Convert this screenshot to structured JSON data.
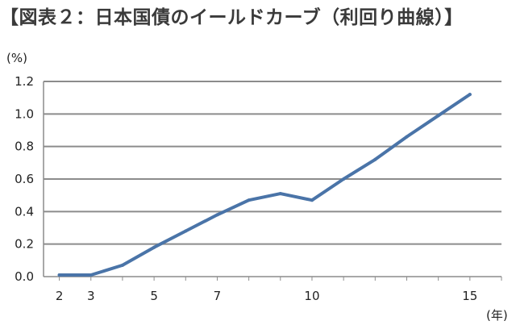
{
  "title": "【図表２：日本国債のイールドカーブ（利回り曲線）】",
  "colors": {
    "line": "#4a74a8",
    "grid": "#8c8c8c",
    "axis": "#8c8c8c"
  },
  "chart_data": {
    "type": "line",
    "title": "【図表２：日本国債のイールドカーブ（利回り曲線）】",
    "y_unit_label": "(%)",
    "x_unit_label": "(年)",
    "ylim": [
      0,
      1.2
    ],
    "xlim": [
      1.5,
      16
    ],
    "grid": true,
    "y_ticks": [
      0.0,
      0.2,
      0.4,
      0.6,
      0.8,
      1.0,
      1.2
    ],
    "y_tick_labels": [
      "0.0",
      "0.2",
      "0.4",
      "0.6",
      "0.8",
      "1.0",
      "1.2"
    ],
    "x_ticks": [
      2,
      3,
      5,
      7,
      10,
      15
    ],
    "x_tick_labels": [
      "2",
      "3",
      "5",
      "7",
      "10",
      "15"
    ],
    "series": [
      {
        "x": [
          2,
          3,
          4,
          5,
          6,
          7,
          8,
          9,
          10,
          11,
          12,
          13,
          14,
          15
        ],
        "values": [
          0.01,
          0.01,
          0.07,
          0.18,
          0.28,
          0.38,
          0.47,
          0.51,
          0.47,
          0.6,
          0.72,
          0.86,
          0.99,
          1.12
        ]
      }
    ]
  }
}
